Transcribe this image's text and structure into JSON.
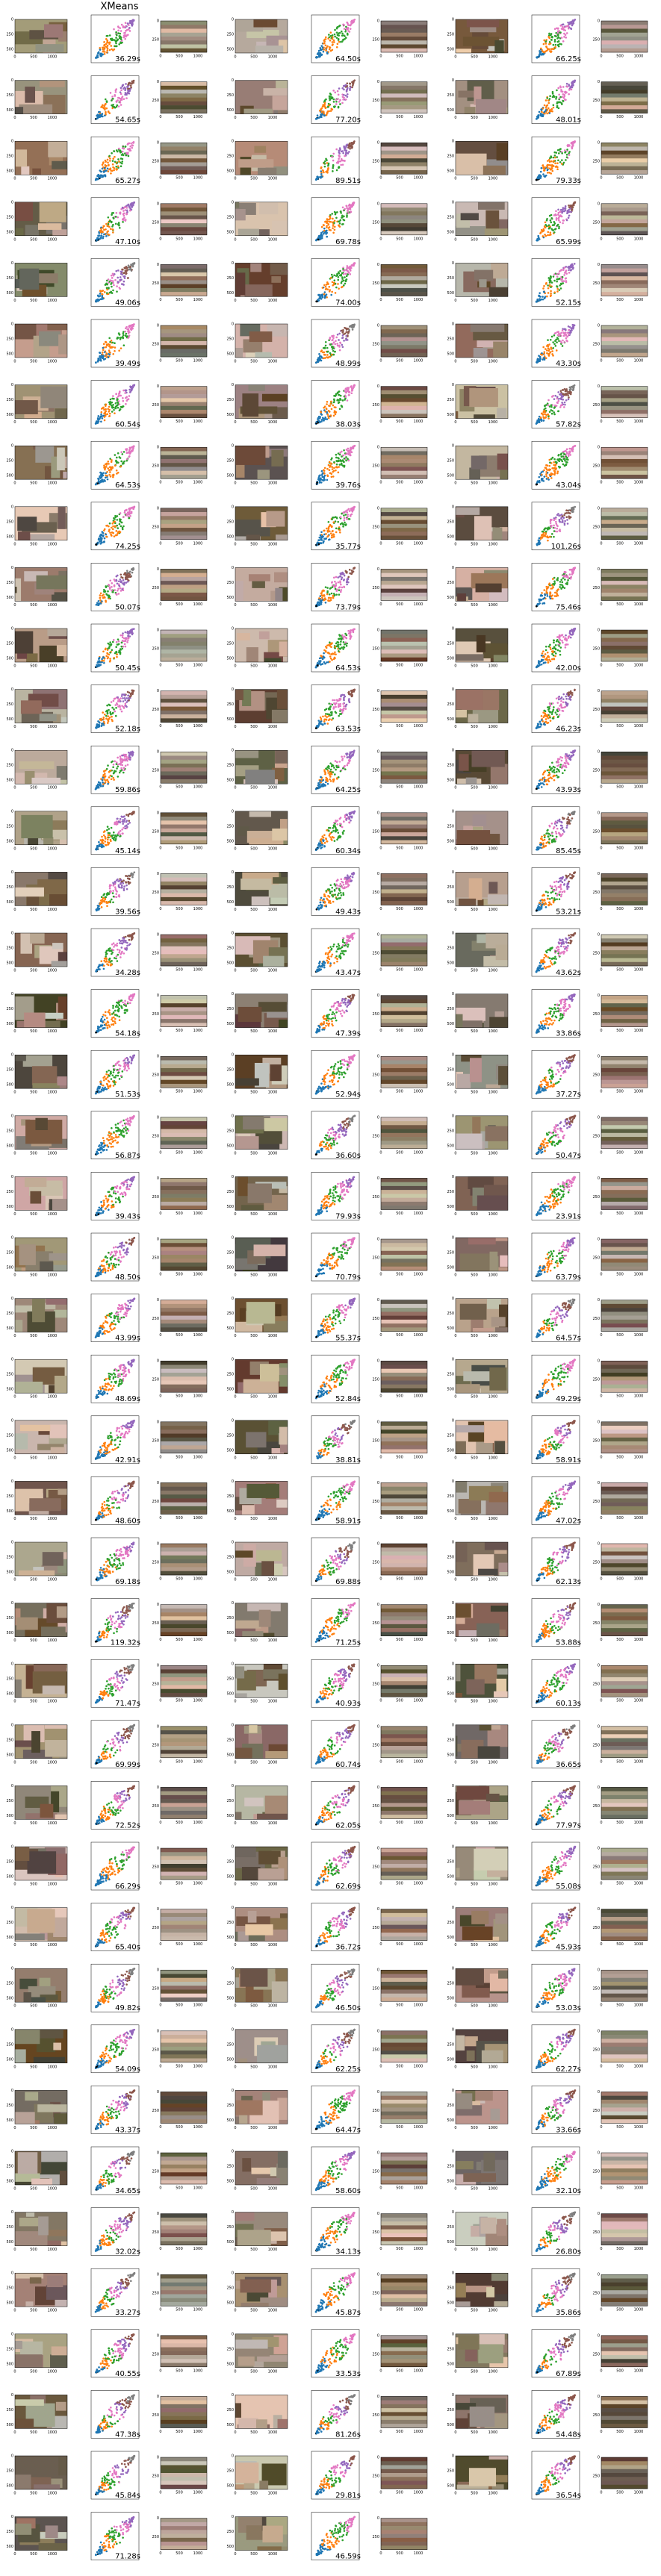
{
  "title": "XMeans",
  "ticks": {
    "image_x": [
      "0",
      "500",
      "1000"
    ],
    "image_y": [
      "0",
      "250",
      "500"
    ],
    "palette_y": [
      "0",
      "250"
    ],
    "palette_x": [
      "0",
      "500",
      "1000"
    ]
  },
  "panels": [
    {
      "time": "36.29s"
    },
    {
      "time": "64.50s"
    },
    {
      "time": "66.25s"
    },
    {
      "time": "54.65s"
    },
    {
      "time": "77.20s"
    },
    {
      "time": "48.01s"
    },
    {
      "time": "65.27s"
    },
    {
      "time": "89.51s"
    },
    {
      "time": "79.33s"
    },
    {
      "time": "47.10s"
    },
    {
      "time": "69.78s"
    },
    {
      "time": "65.99s"
    },
    {
      "time": "49.06s"
    },
    {
      "time": "74.00s"
    },
    {
      "time": "52.15s"
    },
    {
      "time": "39.49s"
    },
    {
      "time": "48.99s"
    },
    {
      "time": "43.30s"
    },
    {
      "time": "60.54s"
    },
    {
      "time": "38.03s"
    },
    {
      "time": "57.82s"
    },
    {
      "time": "64.53s"
    },
    {
      "time": "39.76s"
    },
    {
      "time": "43.04s"
    },
    {
      "time": "74.25s"
    },
    {
      "time": "35.77s"
    },
    {
      "time": "101.26s"
    },
    {
      "time": "50.07s"
    },
    {
      "time": "73.79s"
    },
    {
      "time": "75.46s"
    },
    {
      "time": "50.45s"
    },
    {
      "time": "64.53s"
    },
    {
      "time": "42.00s"
    },
    {
      "time": "52.18s"
    },
    {
      "time": "63.53s"
    },
    {
      "time": "46.23s"
    },
    {
      "time": "59.86s"
    },
    {
      "time": "64.25s"
    },
    {
      "time": "43.93s"
    },
    {
      "time": "45.14s"
    },
    {
      "time": "60.34s"
    },
    {
      "time": "85.45s"
    },
    {
      "time": "39.56s"
    },
    {
      "time": "49.43s"
    },
    {
      "time": "53.21s"
    },
    {
      "time": "34.28s"
    },
    {
      "time": "43.47s"
    },
    {
      "time": "43.62s"
    },
    {
      "time": "54.18s"
    },
    {
      "time": "47.39s"
    },
    {
      "time": "33.86s"
    },
    {
      "time": "51.53s"
    },
    {
      "time": "52.94s"
    },
    {
      "time": "37.27s"
    },
    {
      "time": "56.87s"
    },
    {
      "time": "36.60s"
    },
    {
      "time": "50.47s"
    },
    {
      "time": "39.43s"
    },
    {
      "time": "79.93s"
    },
    {
      "time": "23.91s"
    },
    {
      "time": "48.50s"
    },
    {
      "time": "70.79s"
    },
    {
      "time": "63.79s"
    },
    {
      "time": "43.99s"
    },
    {
      "time": "55.37s"
    },
    {
      "time": "64.57s"
    },
    {
      "time": "48.69s"
    },
    {
      "time": "52.84s"
    },
    {
      "time": "49.29s"
    },
    {
      "time": "42.91s"
    },
    {
      "time": "38.81s"
    },
    {
      "time": "58.91s"
    },
    {
      "time": "48.60s"
    },
    {
      "time": "58.91s"
    },
    {
      "time": "47.02s"
    },
    {
      "time": "69.18s"
    },
    {
      "time": "69.88s"
    },
    {
      "time": "62.13s"
    },
    {
      "time": "119.32s"
    },
    {
      "time": "71.25s"
    },
    {
      "time": "53.88s"
    },
    {
      "time": "71.47s"
    },
    {
      "time": "40.93s"
    },
    {
      "time": "60.13s"
    },
    {
      "time": "69.99s"
    },
    {
      "time": "60.74s"
    },
    {
      "time": "36.65s"
    },
    {
      "time": "72.52s"
    },
    {
      "time": "62.05s"
    },
    {
      "time": "77.97s"
    },
    {
      "time": "66.29s"
    },
    {
      "time": "62.69s"
    },
    {
      "time": "55.08s"
    },
    {
      "time": "65.40s"
    },
    {
      "time": "36.72s"
    },
    {
      "time": "45.93s"
    },
    {
      "time": "49.82s"
    },
    {
      "time": "46.50s"
    },
    {
      "time": "53.03s"
    },
    {
      "time": "54.09s"
    },
    {
      "time": "62.25s"
    },
    {
      "time": "62.27s"
    },
    {
      "time": "43.37s"
    },
    {
      "time": "64.47s"
    },
    {
      "time": "33.66s"
    },
    {
      "time": "34.65s"
    },
    {
      "time": "58.60s"
    },
    {
      "time": "32.10s"
    },
    {
      "time": "32.02s"
    },
    {
      "time": "34.13s"
    },
    {
      "time": "26.80s"
    },
    {
      "time": "33.27s"
    },
    {
      "time": "45.87s"
    },
    {
      "time": "35.86s"
    },
    {
      "time": "40.55s"
    },
    {
      "time": "33.53s"
    },
    {
      "time": "67.89s"
    },
    {
      "time": "47.38s"
    },
    {
      "time": "81.26s"
    },
    {
      "time": "54.48s"
    },
    {
      "time": "45.84s"
    },
    {
      "time": "29.81s"
    },
    {
      "time": "36.54s"
    },
    {
      "time": "71.28s"
    },
    {
      "time": "46.59s"
    }
  ]
}
